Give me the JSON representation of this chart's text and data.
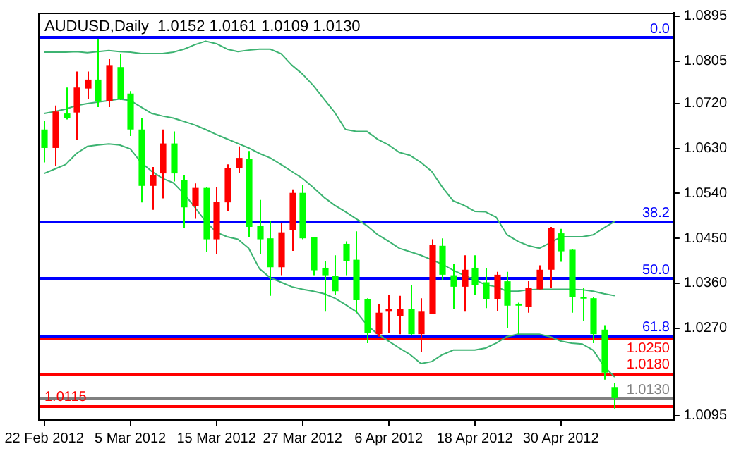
{
  "chart_data": {
    "type": "candlestick",
    "title": "AUDUSD,Daily  1.0152 1.0161 1.0109 1.0130",
    "categories": [
      "22 Feb 2012",
      null,
      null,
      null,
      null,
      null,
      null,
      null,
      "5 Mar 2012",
      null,
      null,
      null,
      null,
      null,
      null,
      null,
      "15 Mar 2012",
      null,
      null,
      null,
      null,
      null,
      null,
      null,
      "27 Mar 2012",
      null,
      null,
      null,
      null,
      null,
      null,
      null,
      "6 Apr 2012",
      null,
      null,
      null,
      null,
      null,
      null,
      null,
      "18 Apr 2012",
      null,
      null,
      null,
      null,
      null,
      null,
      null,
      "30 Apr 2012",
      null,
      null,
      null,
      null,
      null
    ],
    "ohlc": [
      [
        1.0668,
        1.0686,
        1.0602,
        1.0631
      ],
      [
        1.0631,
        1.0716,
        1.0595,
        1.0704
      ],
      [
        1.07,
        1.0752,
        1.0688,
        1.0691
      ],
      [
        1.0702,
        1.0784,
        1.0648,
        1.0752
      ],
      [
        1.075,
        1.0784,
        1.0729,
        1.0768
      ],
      [
        1.0768,
        1.0849,
        1.0713,
        1.0725
      ],
      [
        1.0725,
        1.0809,
        1.0713,
        1.0797
      ],
      [
        1.0793,
        1.082,
        1.0727,
        1.0729
      ],
      [
        1.074,
        1.0745,
        1.0655,
        1.0668
      ],
      [
        1.0668,
        1.0691,
        1.0522,
        1.0555
      ],
      [
        1.0555,
        1.0593,
        1.0507,
        1.0577
      ],
      [
        1.058,
        1.0668,
        1.053,
        1.064
      ],
      [
        1.064,
        1.0664,
        1.0564,
        1.058
      ],
      [
        1.0566,
        1.0577,
        1.0471,
        1.0512
      ],
      [
        1.0514,
        1.056,
        1.0489,
        1.0551
      ],
      [
        1.0551,
        1.0552,
        1.0423,
        1.0448
      ],
      [
        1.0448,
        1.0552,
        1.0418,
        1.0523
      ],
      [
        1.0522,
        1.0598,
        1.0504,
        1.0591
      ],
      [
        1.0591,
        1.0634,
        1.058,
        1.0611
      ],
      [
        1.0609,
        1.0625,
        1.0453,
        1.0473
      ],
      [
        1.0475,
        1.0527,
        1.0418,
        1.0448
      ],
      [
        1.045,
        1.0484,
        1.0335,
        1.0392
      ],
      [
        1.0392,
        1.048,
        1.0376,
        1.0462
      ],
      [
        1.0466,
        1.0548,
        1.0425,
        1.0541
      ],
      [
        1.0541,
        1.0557,
        1.0448,
        1.045
      ],
      [
        1.0453,
        1.0453,
        1.0376,
        1.0386
      ],
      [
        1.0391,
        1.0405,
        1.0303,
        1.0376
      ],
      [
        1.0374,
        1.0416,
        1.0337,
        1.0344
      ],
      [
        1.0439,
        1.0444,
        1.0376,
        1.0405
      ],
      [
        1.0407,
        1.0464,
        1.0301,
        1.0326
      ],
      [
        1.0328,
        1.033,
        1.024,
        1.026
      ],
      [
        1.0258,
        1.0319,
        1.0253,
        1.0301
      ],
      [
        1.0303,
        1.0337,
        1.026,
        1.0309
      ],
      [
        1.0294,
        1.0335,
        1.0258,
        1.0309
      ],
      [
        1.0309,
        1.0356,
        1.0256,
        1.0258
      ],
      [
        1.0258,
        1.033,
        1.0223,
        1.0303
      ],
      [
        1.0299,
        1.0448,
        1.0299,
        1.0437
      ],
      [
        1.0435,
        1.045,
        1.0367,
        1.0377
      ],
      [
        1.0376,
        1.0398,
        1.0308,
        1.0353
      ],
      [
        1.0353,
        1.0416,
        1.0303,
        1.0387
      ],
      [
        1.0391,
        1.0416,
        1.0337,
        1.0356
      ],
      [
        1.0362,
        1.0391,
        1.031,
        1.0328
      ],
      [
        1.0328,
        1.0383,
        1.0305,
        1.0377
      ],
      [
        1.0364,
        1.0383,
        1.0271,
        1.0315
      ],
      [
        1.0319,
        1.0321,
        1.0258,
        1.0315
      ],
      [
        1.0312,
        1.0364,
        1.0301,
        1.0351
      ],
      [
        1.0348,
        1.0396,
        1.0348,
        1.0387
      ],
      [
        1.0387,
        1.0473,
        1.035,
        1.0471
      ],
      [
        1.046,
        1.0469,
        1.0403,
        1.0424
      ],
      [
        1.0427,
        1.0428,
        1.0301,
        1.0332
      ],
      [
        1.0332,
        1.0351,
        1.0285,
        1.033
      ],
      [
        1.033,
        1.0332,
        1.024,
        1.0258
      ],
      [
        1.0267,
        1.0276,
        1.0167,
        1.0181
      ],
      [
        1.0152,
        1.0161,
        1.0109,
        1.013
      ]
    ],
    "colors": [
      "#00ff00",
      "#ff0000",
      "#00ff00",
      "#ff0000",
      "#ff0000",
      "#00ff00",
      "#ff0000",
      "#00ff00",
      "#00ff00",
      "#00ff00",
      "#ff0000",
      "#ff0000",
      "#00ff00",
      "#00ff00",
      "#ff0000",
      "#00ff00",
      "#ff0000",
      "#ff0000",
      "#ff0000",
      "#00ff00",
      "#00ff00",
      "#00ff00",
      "#ff0000",
      "#ff0000",
      "#00ff00",
      "#00ff00",
      "#00ff00",
      "#00ff00",
      "#00ff00",
      "#00ff00",
      "#00ff00",
      "#ff0000",
      "#ff0000",
      "#ff0000",
      "#00ff00",
      "#ff0000",
      "#ff0000",
      "#00ff00",
      "#00ff00",
      "#ff0000",
      "#00ff00",
      "#00ff00",
      "#ff0000",
      "#00ff00",
      "#00ff00",
      "#ff0000",
      "#ff0000",
      "#ff0000",
      "#00ff00",
      "#00ff00",
      "#00ff00",
      "#00ff00",
      "#00ff00",
      "#00ff00"
    ],
    "series": [
      {
        "type": "line",
        "color": "#3cb371",
        "values": [
          1.0823,
          1.0823,
          1.0823,
          1.0824,
          1.0822,
          1.0824,
          1.0826,
          1.0824,
          1.0823,
          1.082,
          1.082,
          1.082,
          1.0823,
          1.0829,
          1.0838,
          1.0845,
          1.084,
          1.0829,
          1.0824,
          1.0827,
          1.0829,
          1.0829,
          1.082,
          1.0797,
          1.0779,
          1.0756,
          1.0729,
          1.0702,
          1.0668,
          1.0664,
          1.0664,
          1.0648,
          1.0637,
          1.0622,
          1.0616,
          1.0602,
          1.0584,
          1.0552,
          1.0525,
          1.0516,
          1.0504,
          1.0503,
          1.0492,
          1.0457,
          1.0444,
          1.0435,
          1.043,
          1.0441,
          1.0453,
          1.0453,
          1.0453,
          1.0457,
          1.0471,
          1.0484
        ]
      },
      {
        "type": "line",
        "color": "#3cb371",
        "values": [
          1.07,
          1.0704,
          1.0709,
          1.0716,
          1.072,
          1.0723,
          1.0726,
          1.0729,
          1.0726,
          1.0713,
          1.07,
          1.0695,
          1.0691,
          1.0684,
          1.0677,
          1.0668,
          1.0658,
          1.0649,
          1.064,
          1.0631,
          1.062,
          1.0611,
          1.0598,
          1.0584,
          1.057,
          1.0552,
          1.0532,
          1.0516,
          1.0503,
          1.0489,
          1.0475,
          1.0457,
          1.0444,
          1.043,
          1.0423,
          1.0416,
          1.0407,
          1.0398,
          1.0386,
          1.0376,
          1.0367,
          1.0357,
          1.0353,
          1.0344,
          1.0344,
          1.0347,
          1.0348,
          1.0348,
          1.0348,
          1.0348,
          1.0347,
          1.0344,
          1.0339,
          1.0335
        ]
      },
      {
        "type": "line",
        "color": "#3cb371",
        "values": [
          1.058,
          1.0589,
          1.0598,
          1.062,
          1.0634,
          1.0637,
          1.0639,
          1.0637,
          1.0629,
          1.0602,
          1.0584,
          1.057,
          1.0561,
          1.0539,
          1.0512,
          1.0484,
          1.0462,
          1.0453,
          1.0448,
          1.043,
          1.0389,
          1.0371,
          1.0362,
          1.0353,
          1.0348,
          1.0344,
          1.0339,
          1.033,
          1.0317,
          1.0303,
          1.0276,
          1.0258,
          1.0244,
          1.023,
          1.0217,
          1.0199,
          1.0203,
          1.0217,
          1.0226,
          1.0226,
          1.0226,
          1.023,
          1.024,
          1.0253,
          1.0258,
          1.0258,
          1.0258,
          1.0253,
          1.0244,
          1.024,
          1.0238,
          1.0226,
          1.0194,
          1.0172
        ]
      }
    ],
    "ylim": [
      1.0086,
      1.0902
    ],
    "yticks": [
      {
        "value": 1.0895,
        "label": "1.0895"
      },
      {
        "value": 1.0805,
        "label": "1.0805"
      },
      {
        "value": 1.072,
        "label": "1.0720"
      },
      {
        "value": 1.063,
        "label": "1.0630"
      },
      {
        "value": 1.054,
        "label": "1.0540"
      },
      {
        "value": 1.045,
        "label": "1.0450"
      },
      {
        "value": 1.036,
        "label": "1.0360"
      },
      {
        "value": 1.027,
        "label": "1.0270"
      },
      {
        "value": 1.0095,
        "label": "1.0095"
      }
    ],
    "ref_lines": [
      {
        "axis": "y",
        "value": 1.0853,
        "color": "#0000ff"
      },
      {
        "axis": "y",
        "value": 1.0484,
        "color": "#0000ff"
      },
      {
        "axis": "y",
        "value": 1.037,
        "color": "#0000ff"
      },
      {
        "axis": "y",
        "value": 1.0256,
        "color": "#0000ff"
      },
      {
        "axis": "y",
        "value": 1.025,
        "label": "1.0250",
        "color": "#ff0000"
      },
      {
        "axis": "y",
        "value": 1.018,
        "label": "1.0180",
        "color": "#ff0000"
      },
      {
        "axis": "y",
        "value": 1.013,
        "label": "1.0130",
        "color": "#808080"
      },
      {
        "axis": "y",
        "value": 1.0115,
        "label": "1.0115",
        "color": "#ff0000"
      }
    ],
    "annotations": [
      {
        "text": "0.0",
        "y": 1.0853
      },
      {
        "text": "38.2",
        "y": 1.0484
      },
      {
        "text": "50.0",
        "y": 1.037
      },
      {
        "text": "61.8",
        "y": 1.0256
      }
    ]
  }
}
